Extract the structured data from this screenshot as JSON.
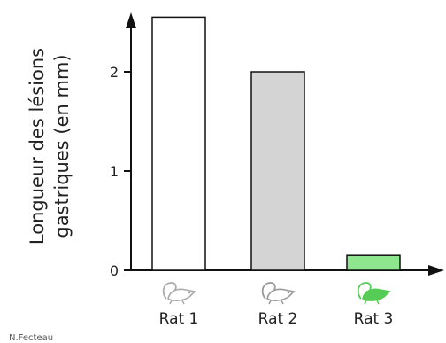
{
  "chart_data": {
    "type": "bar",
    "categories": [
      "Rat 1",
      "Rat 2",
      "Rat 3"
    ],
    "values": [
      2.55,
      2.0,
      0.15
    ],
    "ylabel_lines": [
      "Longueur des lésions",
      "gastriques (en mm)"
    ],
    "yticks": [
      0,
      1,
      2
    ],
    "ylim": [
      0,
      2.75
    ],
    "grid": false,
    "legend": "none",
    "bar_fill_colors": [
      "#ffffff",
      "#d4d4d4",
      "#8ee68e"
    ],
    "bar_stroke_color": "#111111",
    "icon_colors": [
      "#aaaaaa",
      "#999999",
      "#55cc55"
    ],
    "icons": [
      "rat-icon",
      "rat-icon",
      "rat-icon"
    ]
  },
  "corner_note": "N.Fecteau"
}
